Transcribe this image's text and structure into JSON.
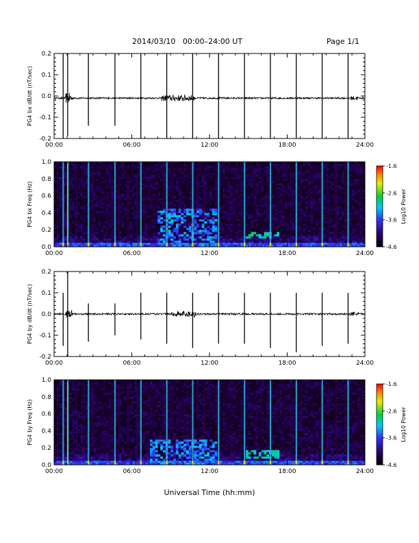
{
  "header": {
    "title": "2014/03/10   00:00–24:00 UT",
    "page": "Page 1/1"
  },
  "x_axis_title": "Universal Time (hh:mm)",
  "colorbar": {
    "title": "Log10 Power",
    "ticks": [
      "-1.6",
      "-2.6",
      "-3.6",
      "-4.6"
    ]
  },
  "chart_data": [
    {
      "type": "line",
      "ylabel": "PG4 bx dB/dt (nT/sec)",
      "xlim": [
        0,
        24
      ],
      "ylim": [
        -0.2,
        0.2
      ],
      "yticks": [
        "0.2",
        "0.1",
        "0.0",
        "-0.1",
        "-0.2"
      ],
      "xticks": [
        "00:00",
        "06:00",
        "12:00",
        "18:00",
        "24:00"
      ],
      "baseline": -0.01,
      "spikes": [
        {
          "t": 0.7,
          "ymax": 0.2,
          "ymin": -0.2
        },
        {
          "t": 1.05,
          "ymax": 0.2,
          "ymin": -0.19
        },
        {
          "t": 2.65,
          "ymax": 0.2,
          "ymin": -0.14
        },
        {
          "t": 4.7,
          "ymax": 0.2,
          "ymin": -0.14
        },
        {
          "t": 6.7,
          "ymax": 0.2,
          "ymin": -0.2
        },
        {
          "t": 8.7,
          "ymax": 0.2,
          "ymin": -0.2
        },
        {
          "t": 10.7,
          "ymax": 0.2,
          "ymin": -0.2
        },
        {
          "t": 12.7,
          "ymax": 0.2,
          "ymin": -0.2
        },
        {
          "t": 14.7,
          "ymax": 0.2,
          "ymin": -0.2
        },
        {
          "t": 16.7,
          "ymax": 0.2,
          "ymin": -0.2
        },
        {
          "t": 18.7,
          "ymax": 0.2,
          "ymin": -0.2
        },
        {
          "t": 20.7,
          "ymax": 0.2,
          "ymin": -0.2
        },
        {
          "t": 22.7,
          "ymax": 0.2,
          "ymin": -0.2
        }
      ],
      "noise_bursts": [
        {
          "t0": 0.9,
          "t1": 1.4,
          "amp": 0.05
        },
        {
          "t0": 8.3,
          "t1": 10.8,
          "amp": 0.03
        },
        {
          "t0": 22.8,
          "t1": 23.5,
          "amp": 0.02
        }
      ]
    },
    {
      "type": "heatmap",
      "ylabel": "PG4 bx Freq (Hz)",
      "xlim": [
        0,
        24
      ],
      "ylim": [
        0,
        1.0
      ],
      "yticks": [
        "1.0",
        "0.8",
        "0.6",
        "0.4",
        "0.2",
        "0.0"
      ],
      "xticks": [
        "00:00",
        "06:00",
        "12:00",
        "18:00",
        "24:00"
      ],
      "zlim": [
        -4.6,
        -1.6
      ],
      "features": [
        {
          "t0": 8.0,
          "t1": 12.5,
          "f0": 0.0,
          "f1": 0.45,
          "level": -3.4
        },
        {
          "t0": 14.8,
          "t1": 17.3,
          "f0": 0.1,
          "f1": 0.17,
          "level": -3.0
        }
      ]
    },
    {
      "type": "line",
      "ylabel": "PG4 by dB/dt (nT/sec)",
      "xlim": [
        0,
        24
      ],
      "ylim": [
        -0.2,
        0.2
      ],
      "yticks": [
        "0.2",
        "0.1",
        "0.0",
        "-0.1",
        "-0.2"
      ],
      "xticks": [
        "00:00",
        "06:00",
        "12:00",
        "18:00",
        "24:00"
      ],
      "baseline": 0.0,
      "spikes": [
        {
          "t": 0.7,
          "ymax": 0.1,
          "ymin": -0.15
        },
        {
          "t": 1.05,
          "ymax": 0.2,
          "ymin": -0.2
        },
        {
          "t": 2.65,
          "ymax": 0.05,
          "ymin": -0.13
        },
        {
          "t": 4.7,
          "ymax": 0.05,
          "ymin": -0.1
        },
        {
          "t": 6.7,
          "ymax": 0.1,
          "ymin": -0.12
        },
        {
          "t": 8.7,
          "ymax": 0.1,
          "ymin": -0.14
        },
        {
          "t": 10.7,
          "ymax": 0.1,
          "ymin": -0.16
        },
        {
          "t": 12.7,
          "ymax": 0.1,
          "ymin": -0.14
        },
        {
          "t": 14.7,
          "ymax": 0.1,
          "ymin": -0.14
        },
        {
          "t": 16.7,
          "ymax": 0.1,
          "ymin": -0.16
        },
        {
          "t": 18.7,
          "ymax": 0.1,
          "ymin": -0.18
        },
        {
          "t": 20.7,
          "ymax": 0.1,
          "ymin": -0.15
        },
        {
          "t": 22.7,
          "ymax": 0.1,
          "ymin": -0.14
        }
      ],
      "noise_bursts": [
        {
          "t0": 0.9,
          "t1": 1.4,
          "amp": 0.04
        },
        {
          "t0": 9.0,
          "t1": 11.0,
          "amp": 0.03
        },
        {
          "t0": 22.8,
          "t1": 23.5,
          "amp": 0.02
        }
      ]
    },
    {
      "type": "heatmap",
      "ylabel": "PG4 by Freq (Hz)",
      "xlim": [
        0,
        24
      ],
      "ylim": [
        0,
        1.0
      ],
      "yticks": [
        "1.0",
        "0.8",
        "0.6",
        "0.4",
        "0.2",
        "0.0"
      ],
      "xticks": [
        "00:00",
        "06:00",
        "12:00",
        "18:00",
        "24:00"
      ],
      "zlim": [
        -4.6,
        -1.6
      ],
      "features": [
        {
          "t0": 7.5,
          "t1": 12.5,
          "f0": 0.0,
          "f1": 0.3,
          "level": -3.4
        },
        {
          "t0": 14.8,
          "t1": 17.3,
          "f0": 0.08,
          "f1": 0.17,
          "level": -3.0
        }
      ]
    }
  ]
}
